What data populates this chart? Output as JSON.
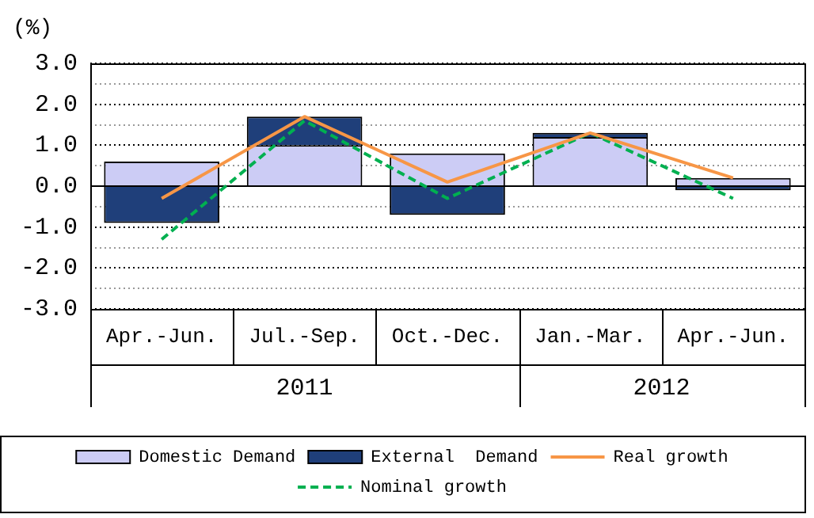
{
  "chart_data": {
    "type": "bar",
    "stacked": true,
    "ylabel": "(%)",
    "categories": [
      "Apr.-Jun.",
      "Jul.-Sep.",
      "Oct.-Dec.",
      "Jan.-Mar.",
      "Apr.-Jun."
    ],
    "series": [
      {
        "name": "Domestic Demand",
        "color": "#ccccf5",
        "values": [
          0.6,
          1.0,
          0.8,
          1.2,
          0.2
        ]
      },
      {
        "name": "External  Demand",
        "color": "#1f3f7a",
        "values": [
          -0.9,
          0.7,
          -0.7,
          0.1,
          -0.1
        ]
      },
      {
        "name": "Real growth",
        "type": "line",
        "color": "#f79646",
        "line_style": "solid",
        "values": [
          -0.3,
          1.7,
          0.1,
          1.3,
          0.2
        ]
      },
      {
        "name": "Nominal growth",
        "type": "line",
        "color": "#00b050",
        "line_style": "dashed",
        "values": [
          -1.3,
          1.6,
          -0.3,
          1.3,
          -0.3
        ]
      }
    ],
    "ylim": [
      -3,
      3
    ],
    "yticks": [
      {
        "value": 3,
        "label": "3.0"
      },
      {
        "value": 2.5,
        "label": null
      },
      {
        "value": 2,
        "label": "2.0"
      },
      {
        "value": 1.5,
        "label": null
      },
      {
        "value": 1,
        "label": "1.0"
      },
      {
        "value": 0.5,
        "label": null
      },
      {
        "value": 0,
        "label": "0.0"
      },
      {
        "value": -0.5,
        "label": null
      },
      {
        "value": -1,
        "label": "-1.0"
      },
      {
        "value": -1.5,
        "label": null
      },
      {
        "value": -2,
        "label": "-2.0"
      },
      {
        "value": -2.5,
        "label": null
      },
      {
        "value": -3,
        "label": "-3.0"
      }
    ],
    "annotations": [
      "2011",
      "2012"
    ],
    "grid": "y",
    "legend": "bottom",
    "marker": "none"
  }
}
